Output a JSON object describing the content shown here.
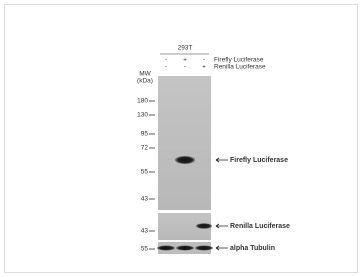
{
  "header": {
    "cell_line": "293T",
    "treatments": [
      {
        "signs": [
          "-",
          "+",
          "-"
        ],
        "label": "Firefly Luciferase"
      },
      {
        "signs": [
          "-",
          "-",
          "+"
        ],
        "label": "Renilla Luciferase"
      }
    ]
  },
  "mw": {
    "title": "MW",
    "unit": "(kDa)"
  },
  "panels": [
    {
      "markers": [
        "180",
        "130",
        "95",
        "72",
        "55",
        "43"
      ],
      "band_label": "Firefly Luciferase"
    },
    {
      "markers": [
        "43"
      ],
      "band_label": "Renilla Luciferase"
    },
    {
      "markers": [
        "55"
      ],
      "band_label": "alpha Tubulin"
    }
  ]
}
